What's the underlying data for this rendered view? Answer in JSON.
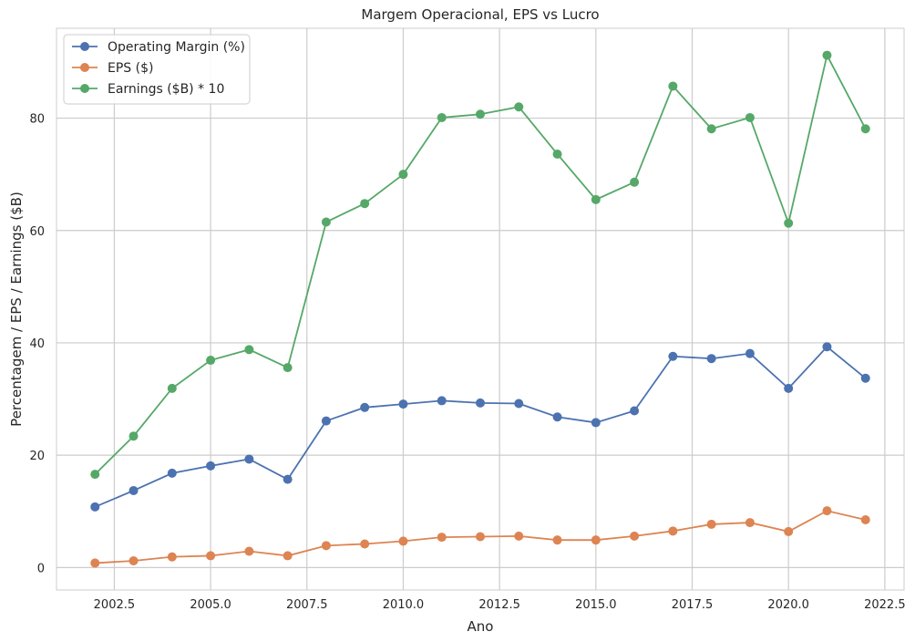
{
  "chart_data": {
    "type": "line",
    "title": "Margem Operacional, EPS vs Lucro",
    "xlabel": "Ano",
    "ylabel": "Percentagem / EPS / Earnings ($B)",
    "xlim": [
      2001.0,
      2023.0
    ],
    "ylim": [
      -4,
      96
    ],
    "xticks": [
      2002.5,
      2005.0,
      2007.5,
      2010.0,
      2012.5,
      2015.0,
      2017.5,
      2020.0,
      2022.5
    ],
    "xtick_labels": [
      "2002.5",
      "2005.0",
      "2007.5",
      "2010.0",
      "2012.5",
      "2015.0",
      "2017.5",
      "2020.0",
      "2022.5"
    ],
    "yticks": [
      0,
      20,
      40,
      60,
      80
    ],
    "ytick_labels": [
      "0",
      "20",
      "40",
      "60",
      "80"
    ],
    "grid": true,
    "legend_position": "top-left",
    "x": [
      2002,
      2003,
      2004,
      2005,
      2006,
      2007,
      2008,
      2009,
      2010,
      2011,
      2012,
      2013,
      2014,
      2015,
      2016,
      2017,
      2018,
      2019,
      2020,
      2021,
      2022
    ],
    "series": [
      {
        "name": "Operating Margin (%)",
        "color": "#4c72b0",
        "values": [
          10.8,
          13.7,
          16.8,
          18.1,
          19.3,
          15.7,
          26.1,
          28.5,
          29.1,
          29.7,
          29.3,
          29.2,
          26.8,
          25.8,
          27.9,
          37.6,
          37.2,
          38.1,
          31.9,
          39.3,
          33.7
        ]
      },
      {
        "name": "EPS ($)",
        "color": "#dd8452",
        "values": [
          0.8,
          1.2,
          1.9,
          2.1,
          2.9,
          2.1,
          3.9,
          4.2,
          4.7,
          5.4,
          5.5,
          5.6,
          4.9,
          4.9,
          5.6,
          6.5,
          7.7,
          8.0,
          6.4,
          10.1,
          8.5
        ]
      },
      {
        "name": "Earnings ($B) * 10",
        "color": "#55a868",
        "values": [
          16.6,
          23.4,
          31.9,
          36.9,
          38.8,
          35.6,
          61.5,
          64.8,
          70.0,
          80.1,
          80.7,
          82.0,
          73.6,
          65.5,
          68.6,
          85.7,
          78.1,
          80.1,
          61.3,
          91.2,
          78.1
        ]
      }
    ]
  }
}
